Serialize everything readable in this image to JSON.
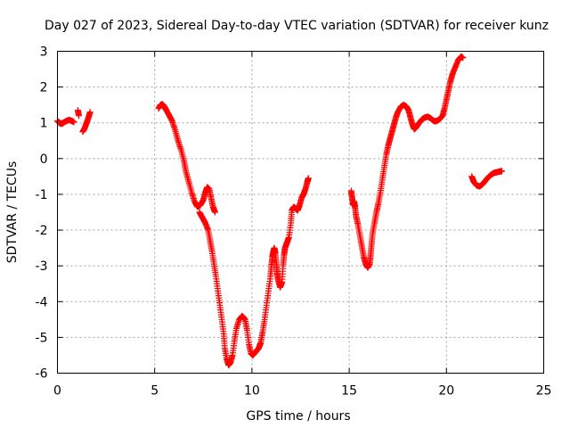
{
  "chart_data": {
    "type": "scatter",
    "title": "Day 027 of 2023, Sidereal Day-to-day VTEC variation (SDTVAR) for receiver kunz",
    "xlabel": "GPS time / hours",
    "ylabel": "SDTVAR / TECUs",
    "xlim": [
      0,
      25
    ],
    "ylim": [
      -6,
      3
    ],
    "xticks": [
      0,
      5,
      10,
      15,
      20,
      25
    ],
    "yticks": [
      -6,
      -5,
      -4,
      -3,
      -2,
      -1,
      0,
      1,
      2,
      3
    ],
    "grid": true,
    "legend": "none",
    "marker": "+",
    "color": "#ff0000",
    "segments": [
      [
        [
          0.0,
          1.05
        ],
        [
          0.1,
          1.0
        ],
        [
          0.2,
          0.97
        ],
        [
          0.3,
          1.0
        ],
        [
          0.45,
          1.05
        ],
        [
          0.6,
          1.08
        ],
        [
          0.75,
          1.05
        ],
        [
          0.85,
          1.02
        ]
      ],
      [
        [
          1.05,
          1.35
        ],
        [
          1.1,
          1.2
        ]
      ],
      [
        [
          1.3,
          0.75
        ],
        [
          1.4,
          0.85
        ],
        [
          1.5,
          1.0
        ],
        [
          1.6,
          1.15
        ],
        [
          1.68,
          1.3
        ]
      ],
      [
        [
          5.2,
          1.4
        ],
        [
          5.3,
          1.5
        ],
        [
          5.4,
          1.52
        ],
        [
          5.5,
          1.45
        ],
        [
          5.6,
          1.35
        ],
        [
          5.75,
          1.2
        ],
        [
          5.9,
          1.05
        ],
        [
          6.05,
          0.8
        ],
        [
          6.2,
          0.5
        ],
        [
          6.35,
          0.25
        ],
        [
          6.5,
          -0.05
        ],
        [
          6.6,
          -0.35
        ],
        [
          6.75,
          -0.65
        ],
        [
          6.9,
          -0.95
        ],
        [
          7.05,
          -1.2
        ],
        [
          7.2,
          -1.35
        ],
        [
          7.35,
          -1.3
        ],
        [
          7.5,
          -1.15
        ],
        [
          7.6,
          -0.95
        ],
        [
          7.7,
          -0.8
        ],
        [
          7.8,
          -0.85
        ],
        [
          7.9,
          -1.1
        ],
        [
          8.0,
          -1.35
        ],
        [
          8.1,
          -1.5
        ]
      ],
      [
        [
          7.3,
          -1.5
        ],
        [
          7.45,
          -1.65
        ],
        [
          7.6,
          -1.8
        ],
        [
          7.75,
          -2.0
        ],
        [
          7.85,
          -2.3
        ],
        [
          7.95,
          -2.6
        ],
        [
          8.05,
          -2.95
        ],
        [
          8.15,
          -3.3
        ],
        [
          8.25,
          -3.7
        ],
        [
          8.35,
          -4.1
        ],
        [
          8.45,
          -4.5
        ],
        [
          8.55,
          -4.9
        ],
        [
          8.6,
          -5.3
        ],
        [
          8.7,
          -5.6
        ],
        [
          8.8,
          -5.78
        ],
        [
          8.9,
          -5.7
        ],
        [
          9.0,
          -5.5
        ],
        [
          9.1,
          -5.1
        ],
        [
          9.2,
          -4.75
        ],
        [
          9.35,
          -4.5
        ],
        [
          9.5,
          -4.4
        ],
        [
          9.65,
          -4.5
        ],
        [
          9.75,
          -4.8
        ],
        [
          9.85,
          -5.2
        ],
        [
          9.95,
          -5.45
        ],
        [
          10.05,
          -5.5
        ],
        [
          10.2,
          -5.4
        ],
        [
          10.35,
          -5.3
        ],
        [
          10.45,
          -5.15
        ],
        [
          10.55,
          -4.85
        ],
        [
          10.65,
          -4.5
        ],
        [
          10.75,
          -4.1
        ],
        [
          10.85,
          -3.7
        ],
        [
          10.95,
          -3.3
        ],
        [
          11.0,
          -3.0
        ],
        [
          11.05,
          -2.75
        ],
        [
          11.1,
          -2.6
        ],
        [
          11.15,
          -2.5
        ],
        [
          11.2,
          -2.65
        ],
        [
          11.25,
          -2.95
        ],
        [
          11.3,
          -3.2
        ],
        [
          11.35,
          -3.4
        ],
        [
          11.45,
          -3.6
        ],
        [
          11.55,
          -3.45
        ],
        [
          11.6,
          -3.0
        ],
        [
          11.65,
          -2.7
        ],
        [
          11.7,
          -2.5
        ],
        [
          11.8,
          -2.35
        ],
        [
          11.9,
          -2.2
        ],
        [
          12.0,
          -1.8
        ],
        [
          12.05,
          -1.45
        ],
        [
          12.15,
          -1.35
        ],
        [
          12.25,
          -1.4
        ],
        [
          12.35,
          -1.45
        ],
        [
          12.45,
          -1.3
        ],
        [
          12.55,
          -1.1
        ],
        [
          12.65,
          -1.0
        ],
        [
          12.75,
          -0.85
        ],
        [
          12.85,
          -0.65
        ],
        [
          12.9,
          -0.55
        ]
      ],
      [
        [
          15.1,
          -0.9
        ],
        [
          15.15,
          -1.1
        ],
        [
          15.2,
          -1.3
        ],
        [
          15.25,
          -1.2
        ],
        [
          15.3,
          -1.35
        ],
        [
          15.35,
          -1.6
        ],
        [
          15.45,
          -1.85
        ],
        [
          15.55,
          -2.15
        ],
        [
          15.65,
          -2.45
        ],
        [
          15.75,
          -2.75
        ],
        [
          15.85,
          -2.95
        ],
        [
          15.95,
          -3.05
        ],
        [
          16.05,
          -2.95
        ],
        [
          16.1,
          -2.7
        ],
        [
          16.15,
          -2.4
        ],
        [
          16.2,
          -2.1
        ],
        [
          16.3,
          -1.8
        ],
        [
          16.4,
          -1.5
        ],
        [
          16.5,
          -1.25
        ],
        [
          16.6,
          -0.95
        ],
        [
          16.7,
          -0.6
        ],
        [
          16.8,
          -0.25
        ],
        [
          16.9,
          0.1
        ],
        [
          17.0,
          0.35
        ],
        [
          17.1,
          0.55
        ],
        [
          17.2,
          0.75
        ],
        [
          17.3,
          0.95
        ],
        [
          17.4,
          1.15
        ],
        [
          17.5,
          1.3
        ],
        [
          17.65,
          1.45
        ],
        [
          17.8,
          1.5
        ],
        [
          17.95,
          1.45
        ],
        [
          18.05,
          1.35
        ],
        [
          18.15,
          1.15
        ],
        [
          18.25,
          0.95
        ],
        [
          18.35,
          0.82
        ],
        [
          18.45,
          0.88
        ],
        [
          18.6,
          1.0
        ],
        [
          18.75,
          1.1
        ],
        [
          18.9,
          1.15
        ],
        [
          19.05,
          1.17
        ],
        [
          19.2,
          1.12
        ],
        [
          19.35,
          1.05
        ],
        [
          19.5,
          1.05
        ],
        [
          19.65,
          1.1
        ],
        [
          19.8,
          1.2
        ],
        [
          19.9,
          1.4
        ],
        [
          20.0,
          1.65
        ],
        [
          20.1,
          1.9
        ],
        [
          20.2,
          2.15
        ],
        [
          20.3,
          2.35
        ],
        [
          20.45,
          2.55
        ],
        [
          20.6,
          2.75
        ],
        [
          20.75,
          2.85
        ],
        [
          20.85,
          2.82
        ]
      ],
      [
        [
          21.3,
          -0.5
        ],
        [
          21.4,
          -0.65
        ],
        [
          21.55,
          -0.75
        ],
        [
          21.7,
          -0.78
        ],
        [
          21.85,
          -0.72
        ],
        [
          22.0,
          -0.62
        ],
        [
          22.15,
          -0.52
        ],
        [
          22.3,
          -0.45
        ],
        [
          22.45,
          -0.4
        ],
        [
          22.6,
          -0.38
        ],
        [
          22.75,
          -0.36
        ],
        [
          22.85,
          -0.35
        ]
      ]
    ]
  }
}
